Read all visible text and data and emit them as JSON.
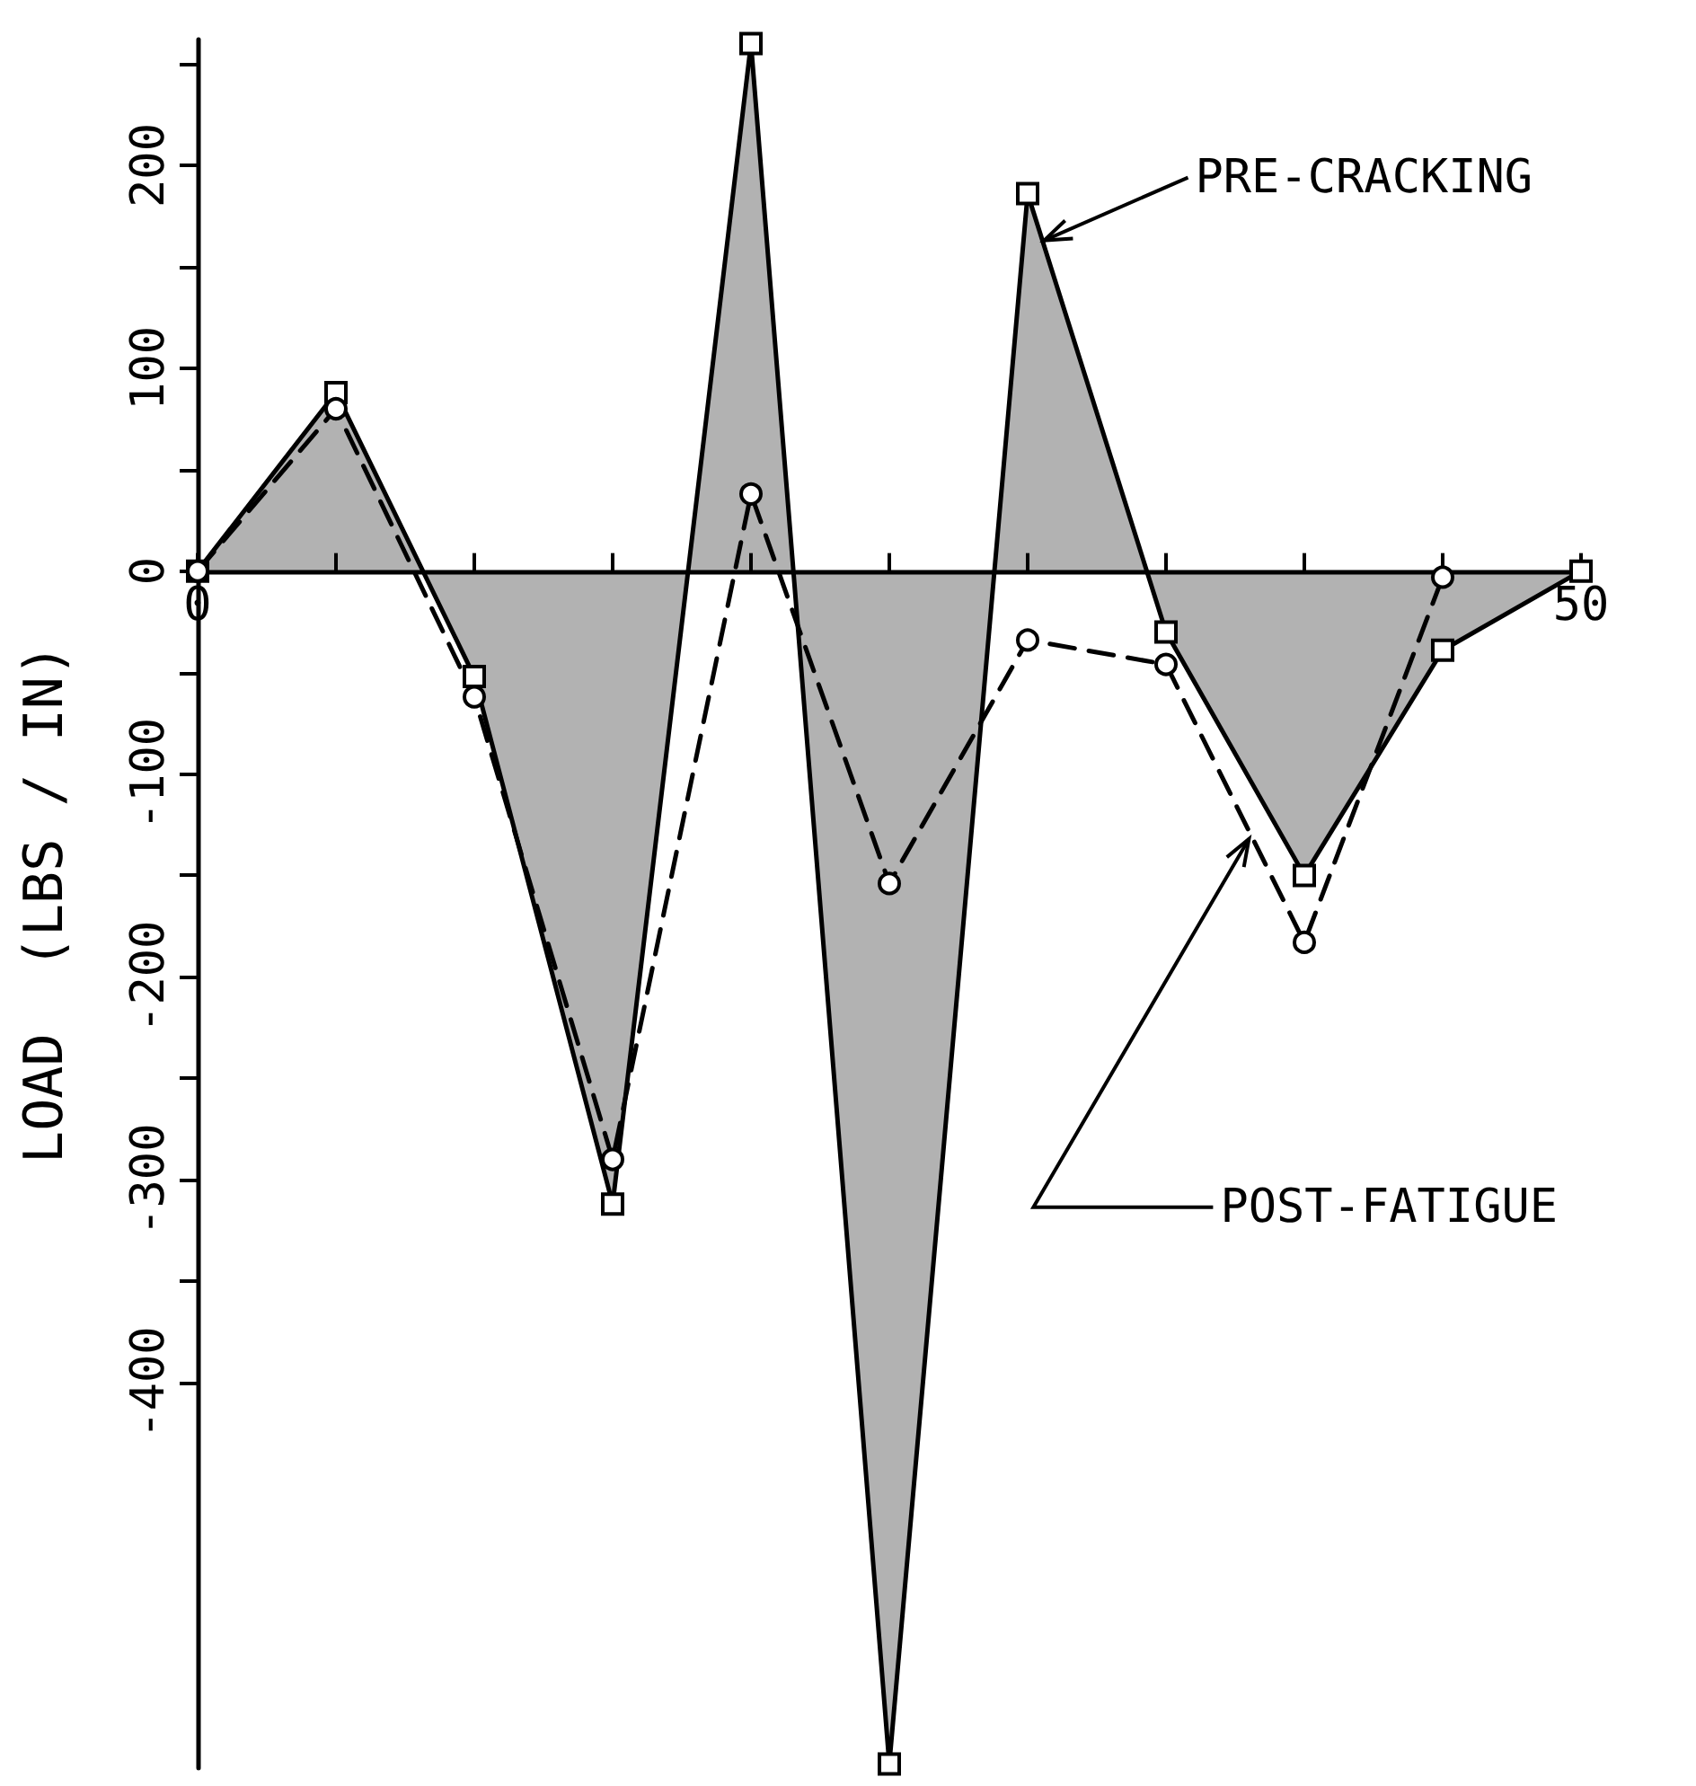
{
  "chart_data": {
    "type": "line",
    "ylabel": "LOAD  (LBS / IN)",
    "x": [
      0,
      5,
      10,
      15,
      20,
      25,
      30,
      35,
      40,
      45,
      50
    ],
    "xlim": [
      0,
      50
    ],
    "xticks": [
      0,
      {
        "value": 5,
        "label": null
      },
      {
        "value": 10,
        "label": null
      },
      {
        "value": 15,
        "label": null
      },
      {
        "value": 20,
        "label": null
      },
      {
        "value": 25,
        "label": null
      },
      {
        "value": 30,
        "label": null
      },
      {
        "value": 35,
        "label": null
      },
      {
        "value": 40,
        "label": null
      },
      {
        "value": 45,
        "label": null
      },
      50
    ],
    "ylim": [
      -590,
      262
    ],
    "yticks": [
      {
        "value": -400,
        "label": "-400"
      },
      {
        "value": -350,
        "label": null
      },
      {
        "value": -300,
        "label": "-300"
      },
      {
        "value": -250,
        "label": null
      },
      {
        "value": -200,
        "label": "-200"
      },
      {
        "value": -150,
        "label": null
      },
      {
        "value": -100,
        "label": "-100"
      },
      {
        "value": -50,
        "label": null
      },
      0,
      {
        "value": 50,
        "label": null
      },
      100,
      {
        "value": 150,
        "label": null
      },
      200,
      {
        "value": 250,
        "label": null
      }
    ],
    "series": [
      {
        "type": "area",
        "color": "#000000",
        "marker": "square",
        "line_style": "solid",
        "values": [
          0,
          88,
          -52,
          -312,
          260,
          -588,
          186,
          -30,
          -150,
          -39,
          0
        ]
      },
      {
        "type": "line",
        "color": "#000000",
        "marker": "circle",
        "line_style": "dashed",
        "values": [
          0,
          80,
          -62,
          -290,
          38,
          -154,
          -34,
          -46,
          -183,
          -3,
          null
        ]
      }
    ],
    "annotations": [
      {
        "text": "PRE-CRACKING",
        "x": 30.6,
        "y": 163
      },
      {
        "text": "POST-FATIGUE",
        "x": 38,
        "y": -132
      }
    ],
    "grid": false
  }
}
